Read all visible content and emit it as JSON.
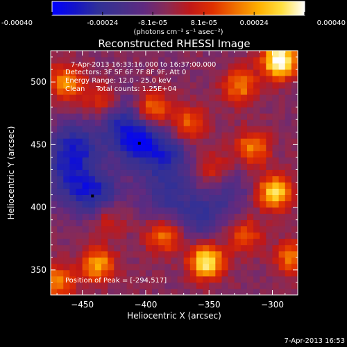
{
  "chart_data": {
    "type": "heatmap",
    "title": "Reconstructed RHESSI Image",
    "xlabel": "Heliocentric X (arcsec)",
    "ylabel": "Heliocentric Y (arcsec)",
    "xlim": [
      -475,
      -280
    ],
    "ylim": [
      330,
      525
    ],
    "x_ticks": [
      -450,
      -400,
      -350,
      -300
    ],
    "y_ticks": [
      350,
      400,
      450,
      500
    ],
    "colorbar": {
      "ticks": [
        "-0.00040",
        "-0.00024",
        "-8.1e-05",
        "8.1e-05",
        "0.00024",
        "0.00040"
      ],
      "tick_values": [
        -0.0004,
        -0.00024,
        -8.1e-05,
        8.1e-05,
        0.00024,
        0.0004
      ],
      "range": [
        -0.0004,
        0.0004
      ],
      "units_label": "(photons cm⁻² s⁻¹ asec⁻²)",
      "colormap_stops": [
        "#0000ff",
        "#1414c8",
        "#303098",
        "#45308a",
        "#602a80",
        "#8a2a55",
        "#c01818",
        "#e03000",
        "#f07000",
        "#ffb000",
        "#ffe040",
        "#ffffff"
      ]
    },
    "annotations": {
      "time_range": "7-Apr-2013 16:33:16.000 to 16:37:00.000",
      "detectors": "Detectors: 3F 5F 6F 7F 8F 9F, Att 0",
      "energy_range": "Energy Range: 12.0 - 25.0 keV",
      "method_counts": "Clean     Total counts: 1.25E+04",
      "peak": "Position of Peak = [-294,517]"
    },
    "markers": [
      {
        "x": -405,
        "y": 451
      },
      {
        "x": -442,
        "y": 409
      }
    ],
    "bright_sources": [
      {
        "x": -294,
        "y": 517,
        "intensity": 1.0
      },
      {
        "x": -352,
        "y": 357,
        "intensity": 0.85
      },
      {
        "x": -298,
        "y": 412,
        "intensity": 0.75
      },
      {
        "x": -325,
        "y": 497,
        "intensity": 0.5
      },
      {
        "x": -395,
        "y": 478,
        "intensity": 0.55
      },
      {
        "x": -366,
        "y": 466,
        "intensity": 0.45
      },
      {
        "x": -316,
        "y": 448,
        "intensity": 0.5
      },
      {
        "x": -385,
        "y": 377,
        "intensity": 0.5
      },
      {
        "x": -438,
        "y": 354,
        "intensity": 0.6
      },
      {
        "x": -463,
        "y": 500,
        "intensity": 0.55
      },
      {
        "x": -435,
        "y": 484,
        "intensity": 0.35
      },
      {
        "x": -322,
        "y": 378,
        "intensity": 0.4
      },
      {
        "x": -285,
        "y": 360,
        "intensity": 0.45
      },
      {
        "x": -430,
        "y": 392,
        "intensity": 0.3
      },
      {
        "x": -470,
        "y": 340,
        "intensity": 0.5
      },
      {
        "x": -347,
        "y": 430,
        "intensity": 0.3
      }
    ],
    "negative_regions": [
      {
        "x": -456,
        "y": 448,
        "intensity": 0.75
      },
      {
        "x": -405,
        "y": 453,
        "intensity": 0.85
      },
      {
        "x": -440,
        "y": 410,
        "intensity": 0.75
      },
      {
        "x": -382,
        "y": 440,
        "intensity": 0.55
      },
      {
        "x": -358,
        "y": 392,
        "intensity": 0.5
      },
      {
        "x": -420,
        "y": 470,
        "intensity": 0.5
      },
      {
        "x": -385,
        "y": 410,
        "intensity": 0.45
      },
      {
        "x": -462,
        "y": 423,
        "intensity": 0.5
      },
      {
        "x": -335,
        "y": 412,
        "intensity": 0.35
      }
    ]
  },
  "footer": {
    "timestamp": "7-Apr-2013 16:53"
  }
}
